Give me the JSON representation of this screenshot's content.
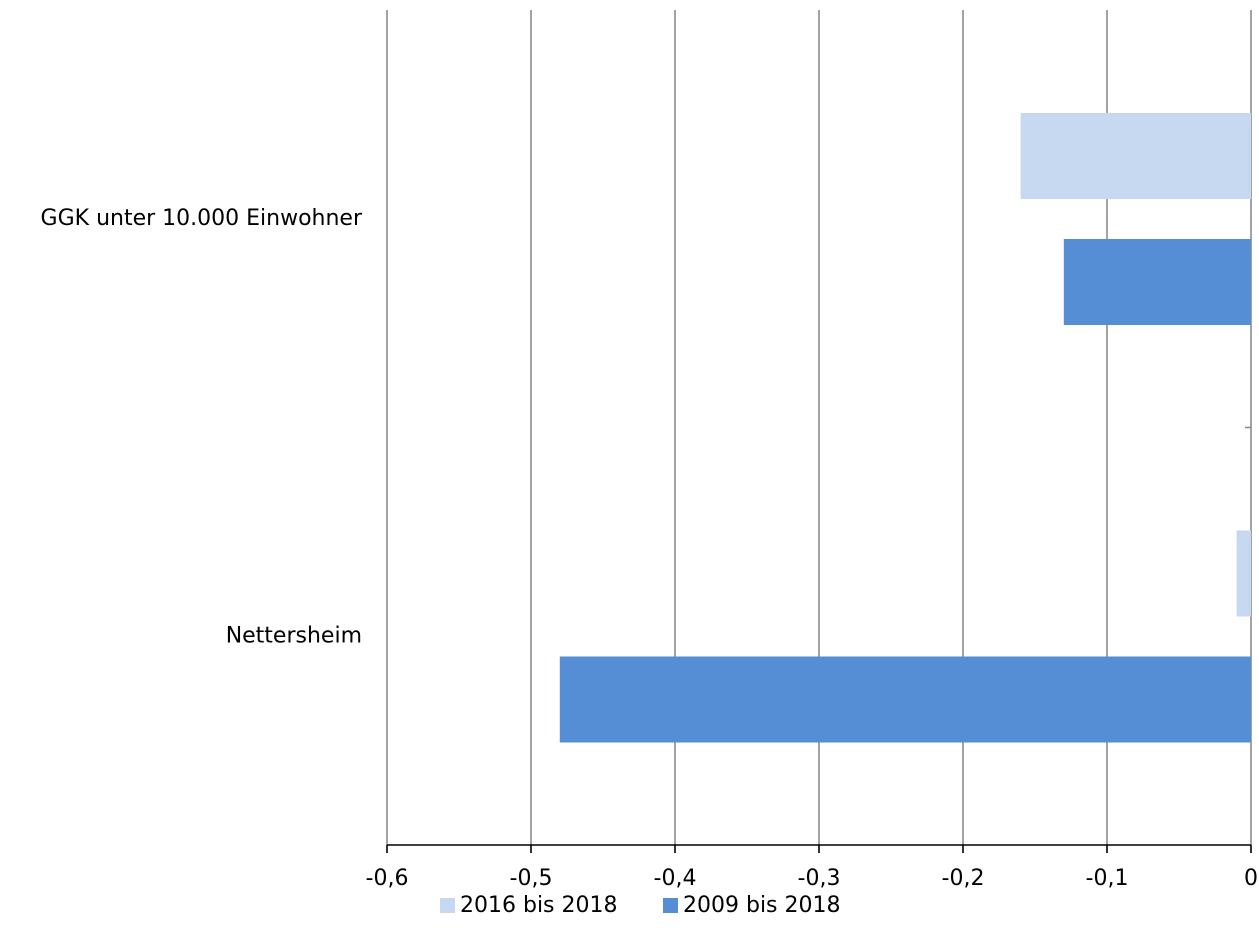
{
  "chart_data": {
    "type": "bar",
    "orientation": "horizontal",
    "categories": [
      "GGK unter 10.000 Einwohner",
      "Nettersheim"
    ],
    "series": [
      {
        "name": "2016 bis 2018",
        "values": [
          -0.16,
          -0.01
        ],
        "color": "#c6d9f1"
      },
      {
        "name": "2009 bis 2018",
        "values": [
          -0.13,
          -0.48
        ],
        "color": "#558ed5"
      }
    ],
    "xlim": [
      -0.6,
      0
    ],
    "xticks": [
      -0.6,
      -0.5,
      -0.4,
      -0.3,
      -0.2,
      -0.1,
      0
    ],
    "xtick_labels": [
      "-0,6",
      "-0,5",
      "-0,4",
      "-0,3",
      "-0,2",
      "-0,1",
      "0"
    ],
    "grid": "vertical",
    "legend_position": "bottom",
    "title": "",
    "xlabel": "",
    "ylabel": ""
  }
}
